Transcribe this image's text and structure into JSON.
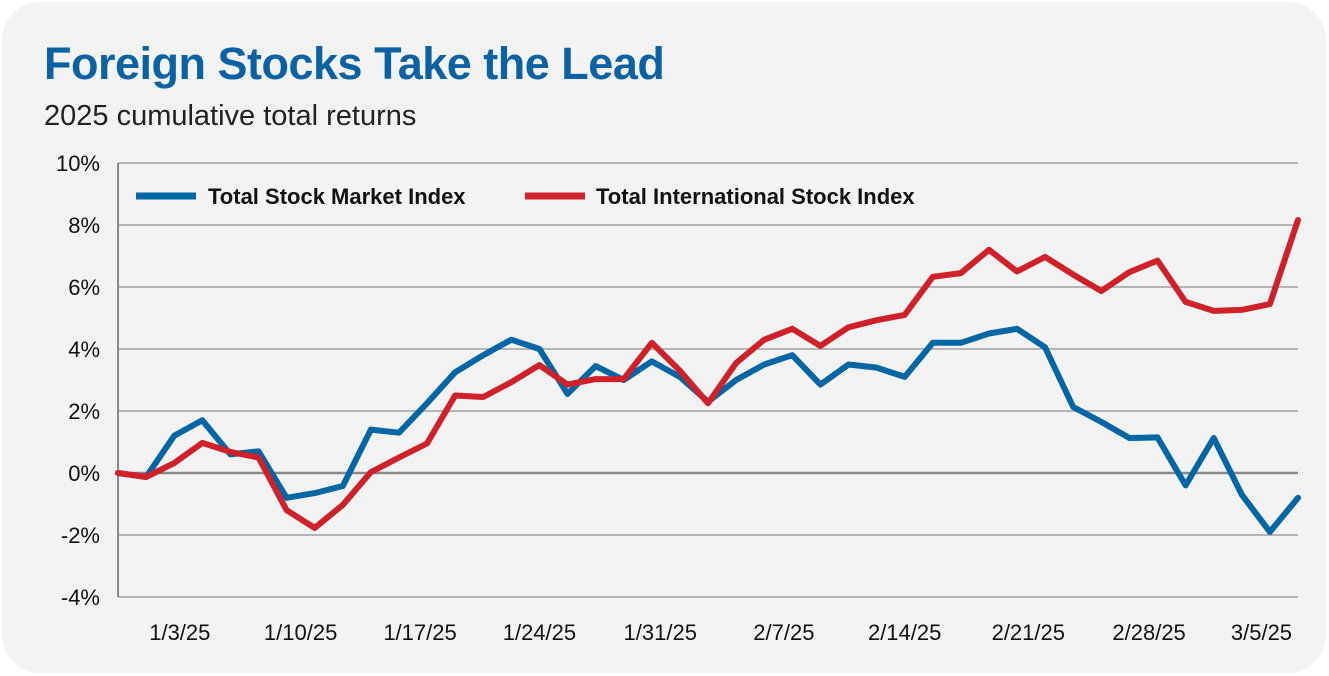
{
  "chart_data": {
    "type": "line",
    "title": "Foreign Stocks Take the Lead",
    "subtitle": "2025 cumulative total returns",
    "xlabel": "",
    "ylabel": "",
    "ylim": [
      -4,
      10
    ],
    "y_ticks": [
      "10%",
      "8%",
      "6%",
      "4%",
      "2%",
      "0%",
      "-2%",
      "-4%"
    ],
    "y_tick_values": [
      10,
      8,
      6,
      4,
      2,
      0,
      -2,
      -4
    ],
    "x_tick_labels": [
      "1/3/25",
      "1/10/25",
      "1/17/25",
      "1/24/25",
      "1/31/25",
      "2/7/25",
      "2/14/25",
      "2/21/25",
      "2/28/25",
      "3/5/25"
    ],
    "grid": "horizontal",
    "legend_position": "top-left",
    "series": [
      {
        "name": "Total Stock Market Index",
        "color": "#0066a4",
        "values": [
          0,
          -0.13,
          1.2,
          1.7,
          0.6,
          0.7,
          -0.8,
          -0.65,
          -0.42,
          1.4,
          1.3,
          2.25,
          3.25,
          3.8,
          4.3,
          4.0,
          2.55,
          3.45,
          3.0,
          3.6,
          3.1,
          2.3,
          3.0,
          3.5,
          3.8,
          2.85,
          3.5,
          3.4,
          3.1,
          4.2,
          4.2,
          4.5,
          4.65,
          4.05,
          2.13,
          1.65,
          1.13,
          1.15,
          -0.4,
          1.13,
          -0.7,
          -1.9,
          -0.8
        ]
      },
      {
        "name": "Total International Stock Index",
        "color": "#d0202a",
        "values": [
          0,
          -0.13,
          0.32,
          0.97,
          0.68,
          0.5,
          -1.2,
          -1.77,
          -1.03,
          0.03,
          0.5,
          0.95,
          2.5,
          2.45,
          2.93,
          3.48,
          2.85,
          3.03,
          3.03,
          4.2,
          3.3,
          2.25,
          3.55,
          4.3,
          4.65,
          4.1,
          4.7,
          4.93,
          5.1,
          6.33,
          6.45,
          7.2,
          6.5,
          6.97,
          6.4,
          5.87,
          6.48,
          6.85,
          5.52,
          5.23,
          5.26,
          5.45,
          8.16
        ]
      }
    ]
  }
}
